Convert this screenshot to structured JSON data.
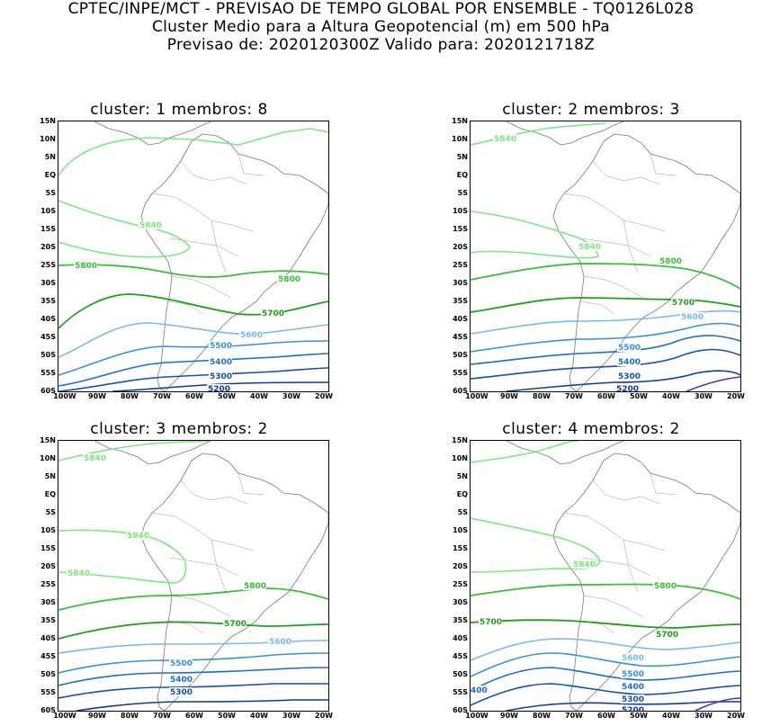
{
  "header": {
    "line1": "CPTEC/INPE/MCT - PREVISAO DE TEMPO GLOBAL POR ENSEMBLE - TQ0126L028",
    "line2": "Cluster Medio para a Altura Geopotencial (m) em 500 hPa",
    "line3": "Previsao de: 2020120300Z   Valido para: 2020121718Z"
  },
  "lat_labels": [
    "15N",
    "10N",
    "5N",
    "EQ",
    "5S",
    "10S",
    "15S",
    "20S",
    "25S",
    "30S",
    "35S",
    "40S",
    "45S",
    "50S",
    "55S",
    "60S"
  ],
  "lon_labels": [
    "100W",
    "90W",
    "80W",
    "70W",
    "60W",
    "50W",
    "40W",
    "30W",
    "20W"
  ],
  "colors": {
    "c5840": "#7ee87e",
    "c5800": "#38c038",
    "c5700": "#1e9e1e",
    "c5600": "#78b8f0",
    "c5500": "#3a8fdc",
    "c5400": "#1e6cc8",
    "c5300": "#1450b0",
    "c5200": "#0c3c9a",
    "c5100": "#5a2ab0",
    "land": "#777777"
  },
  "panels": [
    {
      "title": "cluster: 1   membros: 8",
      "labels": {
        "a": "5840",
        "b": "5800",
        "c": "5800",
        "d": "5700",
        "e": "5600",
        "f": "5500",
        "g": "5400",
        "h": "5300",
        "i": "5200"
      }
    },
    {
      "title": "cluster: 2   membros: 3",
      "labels": {
        "a": "5840",
        "b": "5840",
        "c": "5800",
        "d": "5700",
        "e": "5600",
        "f": "5500",
        "g": "5400",
        "h": "5300",
        "i": "5200"
      }
    },
    {
      "title": "cluster: 3   membros: 2",
      "labels": {
        "a": "5840",
        "b": "5840",
        "c": "5840",
        "d": "5800",
        "e": "5700",
        "f": "5600",
        "g": "5500",
        "h": "5400",
        "i": "5300"
      }
    },
    {
      "title": "cluster: 4   membros: 2",
      "labels": {
        "a": "5840",
        "b": "5800",
        "c": "5700",
        "d": "5700",
        "e": "5600",
        "f": "5500",
        "g": "5400",
        "h": "5300",
        "i": "5200",
        "j": "400"
      }
    }
  ]
}
